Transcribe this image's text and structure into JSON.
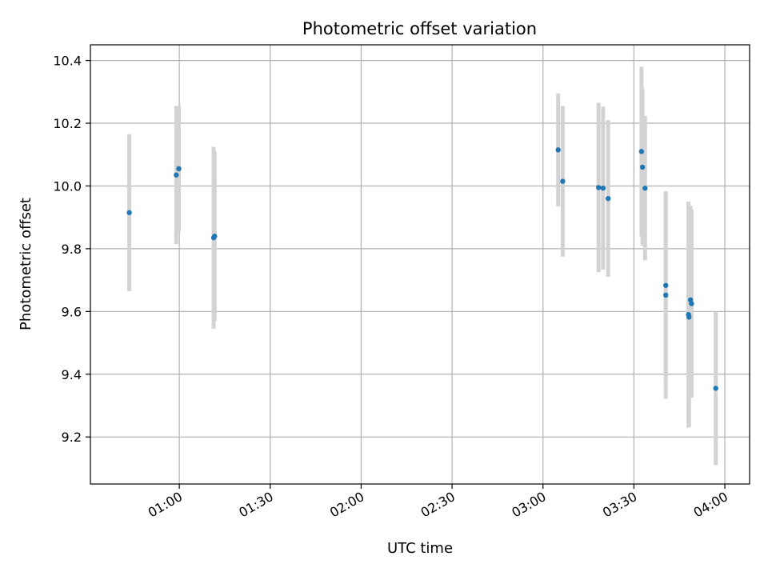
{
  "chart_data": {
    "type": "scatter",
    "title": "Photometric offset variation",
    "xlabel": "UTC time",
    "ylabel": "Photometric offset",
    "grid": true,
    "xlim": [
      "00:30:40",
      "04:08:10"
    ],
    "ylim": [
      9.05,
      10.45
    ],
    "x_ticks": [
      "01:00",
      "01:30",
      "02:00",
      "02:30",
      "03:00",
      "03:30",
      "04:00"
    ],
    "y_ticks": [
      "9.2",
      "9.4",
      "9.6",
      "9.8",
      "10.0",
      "10.2",
      "10.4"
    ],
    "colors": {
      "point": "#1f77b4",
      "errorbar": "#d3d3d3",
      "grid": "#b0b0b0",
      "axis": "#000000"
    },
    "series": [
      {
        "points": [
          {
            "t": "00:43:30",
            "y": 9.915,
            "err": 0.25
          },
          {
            "t": "00:59:50",
            "y": 10.055,
            "err": 0.2
          },
          {
            "t": "00:59:50",
            "y": 10.055,
            "err": 0.2
          },
          {
            "t": "00:59:00",
            "y": 10.035,
            "err": 0.22
          },
          {
            "t": "01:11:20",
            "y": 9.835,
            "err": 0.29
          },
          {
            "t": "01:11:40",
            "y": 9.84,
            "err": 0.27
          },
          {
            "t": "03:05:00",
            "y": 10.115,
            "err": 0.18
          },
          {
            "t": "03:06:30",
            "y": 10.015,
            "err": 0.24
          },
          {
            "t": "03:18:20",
            "y": 9.995,
            "err": 0.27
          },
          {
            "t": "03:19:50",
            "y": 9.993,
            "err": 0.26
          },
          {
            "t": "03:21:30",
            "y": 9.96,
            "err": 0.25
          },
          {
            "t": "03:32:30",
            "y": 10.11,
            "err": 0.27
          },
          {
            "t": "03:32:50",
            "y": 10.06,
            "err": 0.25
          },
          {
            "t": "03:33:40",
            "y": 9.993,
            "err": 0.23
          },
          {
            "t": "03:40:30",
            "y": 9.683,
            "err": 0.3
          },
          {
            "t": "03:40:30",
            "y": 9.652,
            "err": 0.33
          },
          {
            "t": "03:48:00",
            "y": 9.59,
            "err": 0.36
          },
          {
            "t": "03:48:10",
            "y": 9.582,
            "err": 0.35
          },
          {
            "t": "03:48:40",
            "y": 9.637,
            "err": 0.3
          },
          {
            "t": "03:49:00",
            "y": 9.625,
            "err": 0.3
          },
          {
            "t": "03:57:00",
            "y": 9.355,
            "err": 0.245
          }
        ]
      }
    ]
  }
}
